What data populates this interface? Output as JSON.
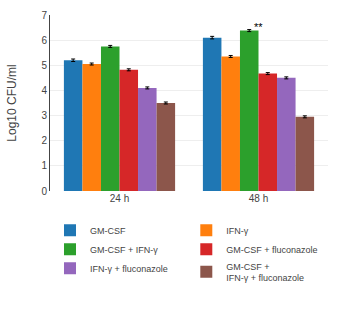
{
  "chart_data": {
    "type": "bar",
    "categories": [
      "24 h",
      "48 h"
    ],
    "series": [
      {
        "name": "GM-CSF",
        "values": [
          5.2,
          6.1
        ],
        "errors": [
          0.05,
          0.05
        ]
      },
      {
        "name": "IFN-γ",
        "values": [
          5.05,
          5.35
        ],
        "errors": [
          0.04,
          0.04
        ]
      },
      {
        "name": "GM-CSF + IFN-γ",
        "values": [
          5.75,
          6.38
        ],
        "errors": [
          0.04,
          0.04
        ]
      },
      {
        "name": "GM-CSF + fluconazole",
        "values": [
          4.82,
          4.67
        ],
        "errors": [
          0.04,
          0.04
        ]
      },
      {
        "name": "IFN-γ + fluconazole",
        "values": [
          4.1,
          4.5
        ],
        "errors": [
          0.04,
          0.04
        ]
      },
      {
        "name": "GM-CSF +\nIFN-γ + fluconazole",
        "values": [
          3.5,
          2.95
        ],
        "errors": [
          0.04,
          0.04
        ]
      }
    ],
    "ylabel": "Log10 CFU/ml",
    "ylim": [
      0,
      7
    ],
    "yticks": [
      0,
      1,
      2,
      3,
      4,
      5,
      6,
      7
    ],
    "grid": true,
    "legend": "bottom",
    "annotations": [
      {
        "text": "**",
        "x": "48 h",
        "y": 6.2
      }
    ]
  }
}
